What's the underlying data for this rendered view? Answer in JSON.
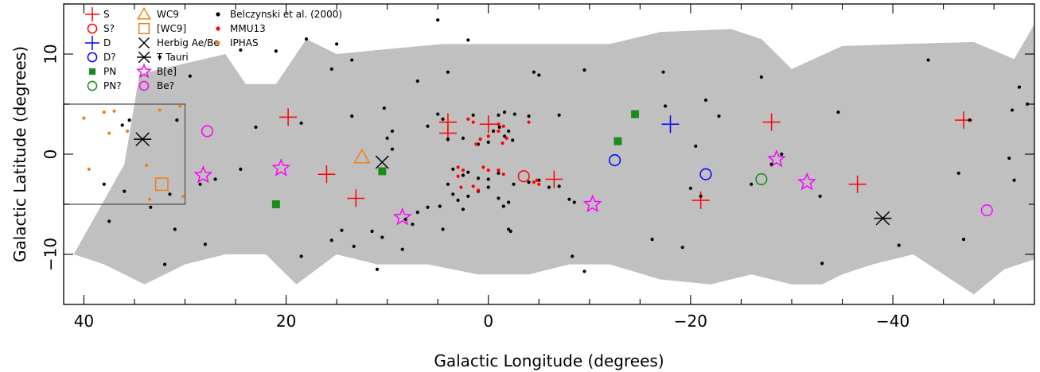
{
  "chart_data": {
    "type": "scatter",
    "xlabel": "Galactic Longitude (degrees)",
    "ylabel": "Galactic Latitude (degrees)",
    "xlim": [
      42,
      -54
    ],
    "ylim": [
      -15,
      15
    ],
    "xticks": [
      40,
      20,
      0,
      -20,
      -40
    ],
    "xtick_labels": [
      "40",
      "20",
      "0",
      "−20",
      "−40"
    ],
    "yticks": [
      -10,
      0,
      10
    ],
    "ytick_labels": [
      "−10",
      "0",
      "10"
    ],
    "grid": false,
    "legend_position": "top-left",
    "coverage_color": "#c0c0c0",
    "coverage_polygon": [
      [
        41,
        -10
      ],
      [
        36,
        -1
      ],
      [
        34.5,
        8
      ],
      [
        26,
        10
      ],
      [
        24,
        7
      ],
      [
        21,
        7
      ],
      [
        18,
        11.5
      ],
      [
        17,
        11
      ],
      [
        15,
        10
      ],
      [
        10,
        10.5
      ],
      [
        4.5,
        11
      ],
      [
        -1,
        11
      ],
      [
        -5,
        11
      ],
      [
        -12,
        11
      ],
      [
        -17,
        12.2
      ],
      [
        -24,
        12.5
      ],
      [
        -27,
        11.5
      ],
      [
        -30,
        8.5
      ],
      [
        -35,
        10.8
      ],
      [
        -41,
        11
      ],
      [
        -48,
        11.2
      ],
      [
        -52,
        9.5
      ],
      [
        -54,
        13
      ],
      [
        -54,
        -10.5
      ],
      [
        -51,
        -11.5
      ],
      [
        -48,
        -14
      ],
      [
        -42,
        -10
      ],
      [
        -38,
        -11
      ],
      [
        -35,
        -12
      ],
      [
        -33,
        -13
      ],
      [
        -30,
        -13
      ],
      [
        -26,
        -12
      ],
      [
        -22,
        -13
      ],
      [
        -17,
        -12.5
      ],
      [
        -12,
        -11
      ],
      [
        -8,
        -11
      ],
      [
        -4,
        -12
      ],
      [
        1,
        -12
      ],
      [
        6,
        -11
      ],
      [
        11,
        -11
      ],
      [
        15,
        -10
      ],
      [
        19,
        -13
      ],
      [
        22,
        -10
      ],
      [
        26,
        -10
      ],
      [
        30,
        -11
      ],
      [
        34,
        -13
      ],
      [
        38,
        -11
      ],
      [
        41,
        -10
      ]
    ],
    "inset_box": {
      "x": [
        42,
        30
      ],
      "y": [
        -5,
        5
      ]
    },
    "legend": [
      {
        "label": "S",
        "symbol": "plus",
        "color": "#ff0000"
      },
      {
        "label": "S?",
        "symbol": "circle",
        "color": "#ff0000"
      },
      {
        "label": "D",
        "symbol": "plus",
        "color": "#0000ff"
      },
      {
        "label": "D?",
        "symbol": "circle",
        "color": "#0000ff"
      },
      {
        "label": "PN",
        "symbol": "filled-square",
        "color": "#1a8a1a"
      },
      {
        "label": "PN?",
        "symbol": "circle",
        "color": "#1a8a1a"
      },
      {
        "label": "WC9",
        "symbol": "triangle",
        "color": "#f07f17"
      },
      {
        "label": "[WC9]",
        "symbol": "square",
        "color": "#f07f17"
      },
      {
        "label": "Herbig Ae/Be",
        "symbol": "cross",
        "color": "#000000"
      },
      {
        "label": "T Tauri",
        "symbol": "asterisk",
        "color": "#000000"
      },
      {
        "label": "B[e]",
        "symbol": "star",
        "color": "#ff00ff"
      },
      {
        "label": "Be?",
        "symbol": "circle",
        "color": "#ff00ff"
      },
      {
        "label": "Belczynski et al. (2000)",
        "symbol": "dot",
        "color": "#000000"
      },
      {
        "label": "MMU13",
        "symbol": "dot",
        "color": "#ff0000"
      },
      {
        "label": "IPHAS",
        "symbol": "dot",
        "color": "#f07f17"
      }
    ],
    "series": [
      {
        "name": "S",
        "symbol": "plus",
        "color": "#ff0000",
        "points": [
          [
            19.8,
            3.7
          ],
          [
            16,
            -2
          ],
          [
            13.1,
            -4.4
          ],
          [
            4,
            3.2
          ],
          [
            4,
            2.1
          ],
          [
            0,
            3
          ],
          [
            -6.5,
            -2.5
          ],
          [
            -21,
            -4.6
          ],
          [
            -28,
            3.2
          ],
          [
            -36.5,
            -3
          ],
          [
            -47,
            3.4
          ]
        ]
      },
      {
        "name": "S?",
        "symbol": "circle",
        "color": "#ff0000",
        "points": [
          [
            -3.5,
            -2.2
          ]
        ]
      },
      {
        "name": "D",
        "symbol": "plus",
        "color": "#0000ff",
        "points": [
          [
            -18,
            3
          ]
        ]
      },
      {
        "name": "D?",
        "symbol": "circle",
        "color": "#0000ff",
        "points": [
          [
            -12.5,
            -0.6
          ],
          [
            -21.5,
            -2
          ]
        ]
      },
      {
        "name": "PN",
        "symbol": "filled-square",
        "color": "#1a8a1a",
        "points": [
          [
            21,
            -5
          ],
          [
            10.5,
            -1.7
          ],
          [
            -12.8,
            1.3
          ],
          [
            -14.5,
            4
          ]
        ]
      },
      {
        "name": "PN?",
        "symbol": "circle",
        "color": "#1a8a1a",
        "points": [
          [
            -27,
            -2.5
          ]
        ]
      },
      {
        "name": "WC9",
        "symbol": "triangle",
        "color": "#f07f17",
        "points": [
          [
            12.5,
            -0.3
          ]
        ]
      },
      {
        "name": "[WC9]",
        "symbol": "square",
        "color": "#f07f17",
        "points": [
          [
            32.3,
            -3
          ]
        ]
      },
      {
        "name": "Herbig Ae/Be",
        "symbol": "cross",
        "color": "#000000",
        "points": [
          [
            10.5,
            -0.8
          ]
        ]
      },
      {
        "name": "T Tauri",
        "symbol": "asterisk",
        "color": "#000000",
        "points": [
          [
            34.2,
            1.5
          ],
          [
            -39,
            -6.4
          ]
        ]
      },
      {
        "name": "B[e]",
        "symbol": "star",
        "color": "#ff00ff",
        "points": [
          [
            28.2,
            -2.1
          ],
          [
            20.5,
            -1.4
          ],
          [
            8.5,
            -6.3
          ],
          [
            -10.3,
            -5
          ],
          [
            -28.5,
            -0.5
          ],
          [
            -31.5,
            -2.8
          ]
        ]
      },
      {
        "name": "Be?",
        "symbol": "circle",
        "color": "#ff00ff",
        "points": [
          [
            27.8,
            2.3
          ],
          [
            -49.3,
            -5.6
          ]
        ]
      },
      {
        "name": "Belczynski et al. (2000)",
        "symbol": "dot",
        "color": "#000000",
        "points": [
          [
            5,
            13.4
          ],
          [
            2,
            11.4
          ],
          [
            21,
            10.3
          ],
          [
            18,
            11.5
          ],
          [
            15,
            11
          ],
          [
            24.5,
            10.4
          ],
          [
            13.5,
            9.4
          ],
          [
            15.5,
            8.5
          ],
          [
            4,
            8.2
          ],
          [
            7,
            7.3
          ],
          [
            -4.5,
            8.2
          ],
          [
            -5,
            7.9
          ],
          [
            -9.5,
            8.4
          ],
          [
            -17.3,
            8.2
          ],
          [
            -27,
            7.7
          ],
          [
            -43.5,
            9.4
          ],
          [
            -52.5,
            6.7
          ],
          [
            29.5,
            7.8
          ],
          [
            32.5,
            9.7
          ],
          [
            36.2,
            2.9
          ],
          [
            35.5,
            3.4
          ],
          [
            30.8,
            3.4
          ],
          [
            23,
            2.7
          ],
          [
            18.5,
            3.1
          ],
          [
            13.5,
            3.8
          ],
          [
            10.3,
            4.6
          ],
          [
            5,
            4
          ],
          [
            4.5,
            3.5
          ],
          [
            1.5,
            3.9
          ],
          [
            -1,
            3.9
          ],
          [
            -1.6,
            4.2
          ],
          [
            -2.6,
            4
          ],
          [
            -4,
            3.8
          ],
          [
            -7,
            3.9
          ],
          [
            -17.5,
            4.8
          ],
          [
            -21.5,
            5.4
          ],
          [
            -22.8,
            3.8
          ],
          [
            -34.6,
            4.2
          ],
          [
            -47.6,
            3.4
          ],
          [
            -51.8,
            4.4
          ],
          [
            -53.3,
            5
          ],
          [
            10,
            1.6
          ],
          [
            9.5,
            2.3
          ],
          [
            6,
            2.8
          ],
          [
            4,
            1.5
          ],
          [
            2.5,
            1.6
          ],
          [
            1,
            1
          ],
          [
            0,
            1.2
          ],
          [
            -0.5,
            2.3
          ],
          [
            -1.1,
            2.7
          ],
          [
            -1.6,
            1.8
          ],
          [
            -2,
            2.3
          ],
          [
            -2.4,
            1.4
          ],
          [
            -20.5,
            0.8
          ],
          [
            -29,
            0
          ],
          [
            -28,
            -1
          ],
          [
            -46.5,
            -1.9
          ],
          [
            -52,
            -2.6
          ],
          [
            -51.5,
            -0.4
          ],
          [
            -26,
            -3
          ],
          [
            -20,
            -3.4
          ],
          [
            -21,
            -4.2
          ],
          [
            -19.2,
            -9.3
          ],
          [
            9.5,
            0.5
          ],
          [
            24.5,
            -1.5
          ],
          [
            27,
            -2.5
          ],
          [
            28.5,
            -3
          ],
          [
            31.5,
            -4
          ],
          [
            33.4,
            -5.3
          ],
          [
            3.5,
            -1.5
          ],
          [
            2.5,
            -2.1
          ],
          [
            2,
            -1.8
          ],
          [
            1,
            -2.4
          ],
          [
            0,
            -2.5
          ],
          [
            -1,
            -1.9
          ],
          [
            -2.5,
            -3
          ],
          [
            -4,
            -2.8
          ],
          [
            -5,
            -2.6
          ],
          [
            -6,
            -3.3
          ],
          [
            -7,
            -3.2
          ],
          [
            -8,
            -4.5
          ],
          [
            -8.5,
            -4.8
          ],
          [
            4,
            -3
          ],
          [
            3.5,
            -4
          ],
          [
            2,
            -4.2
          ],
          [
            1,
            -3.7
          ],
          [
            0,
            -3.3
          ],
          [
            -1,
            -4.4
          ],
          [
            -1.5,
            -5.2
          ],
          [
            -2,
            -4.8
          ],
          [
            3,
            -4.6
          ],
          [
            2.5,
            -5.5
          ],
          [
            4.8,
            -5.2
          ],
          [
            6,
            -5.3
          ],
          [
            7,
            -5.8
          ],
          [
            7.5,
            -7
          ],
          [
            8.2,
            -6.5
          ],
          [
            -2,
            -7.5
          ],
          [
            -2.2,
            -7.7
          ],
          [
            4.5,
            -7.5
          ],
          [
            11.5,
            -7.7
          ],
          [
            14.5,
            -7.6
          ],
          [
            10.5,
            -8.3
          ],
          [
            8.5,
            -9.5
          ],
          [
            13.3,
            -9.2
          ],
          [
            15.5,
            -8.6
          ],
          [
            11,
            -11.5
          ],
          [
            18.5,
            -10.2
          ],
          [
            31,
            -7.5
          ],
          [
            28,
            -9
          ],
          [
            32,
            -11
          ],
          [
            37.5,
            -6.7
          ],
          [
            -16.2,
            -8.5
          ],
          [
            -8.3,
            -10.2
          ],
          [
            -9.5,
            -11.7
          ],
          [
            -32.8,
            -4.2
          ],
          [
            -47,
            -8.5
          ],
          [
            -40.6,
            -9.1
          ],
          [
            -33,
            -10.9
          ],
          [
            36,
            -3.7
          ],
          [
            38,
            -3
          ]
        ]
      },
      {
        "name": "MMU13",
        "symbol": "dot",
        "color": "#ff0000",
        "points": [
          [
            2,
            3.5
          ],
          [
            1.5,
            3.2
          ],
          [
            -1,
            3
          ],
          [
            -1.5,
            2.8
          ],
          [
            -4,
            3.2
          ],
          [
            -1,
            2.3
          ],
          [
            0,
            1.8
          ],
          [
            0.8,
            1.5
          ],
          [
            -1.8,
            1.6
          ],
          [
            -1.4,
            1.1
          ],
          [
            1.2,
            1
          ],
          [
            3,
            -1.3
          ],
          [
            3,
            -2.2
          ],
          [
            2.5,
            -1.6
          ],
          [
            1.5,
            -3.2
          ],
          [
            1,
            -3.6
          ],
          [
            2.7,
            -3.3
          ],
          [
            -1,
            -1.6
          ],
          [
            -1.5,
            -2
          ],
          [
            -4.8,
            -2.6
          ],
          [
            -4.5,
            -2.8
          ],
          [
            -5,
            -3
          ],
          [
            0,
            -1.6
          ],
          [
            0.5,
            -1.3
          ]
        ]
      },
      {
        "name": "IPHAS",
        "symbol": "dot",
        "color": "#f07f17",
        "points": [
          [
            40,
            3.6
          ],
          [
            38,
            4.2
          ],
          [
            37,
            4.3
          ],
          [
            32.5,
            4.4
          ],
          [
            30.5,
            4.8
          ],
          [
            35.7,
            2.3
          ],
          [
            37.5,
            2.1
          ],
          [
            39.5,
            -1.5
          ],
          [
            33.8,
            -1.1
          ],
          [
            33.5,
            -4.5
          ],
          [
            30.2,
            -4.2
          ]
        ]
      }
    ]
  }
}
